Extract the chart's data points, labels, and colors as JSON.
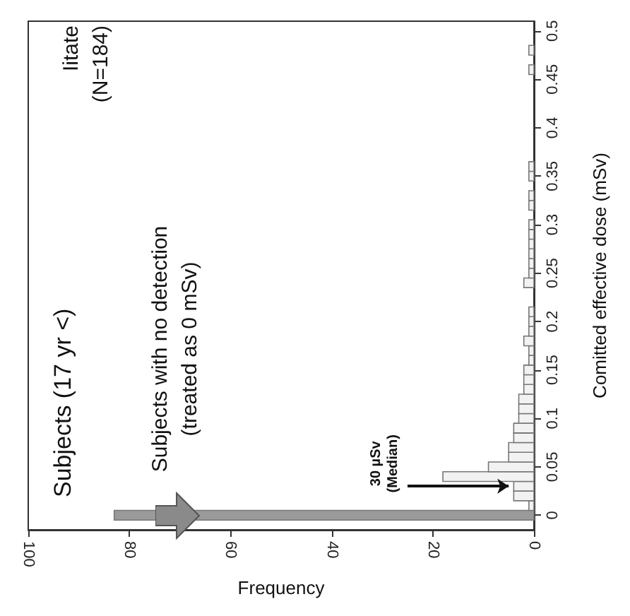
{
  "chart_data": {
    "type": "histogram",
    "orientation": "horizontal",
    "title": "Subjects (17 yr <)",
    "xlabel": "Frequency",
    "ylabel": "Comitted effective dose (mSv)",
    "annotations": [
      "Iitate\n(N=184)",
      "Subjects with no detection\n(treated as 0 mSv)",
      {
        "text": "30 µSv\n(Median)",
        "x": 5,
        "y": 0.03
      }
    ],
    "bins": [
      -0.005,
      0.005,
      0.015,
      0.025,
      0.035,
      0.045,
      0.055,
      0.065,
      0.075,
      0.085,
      0.095,
      0.105,
      0.115,
      0.125,
      0.135,
      0.145,
      0.155,
      0.165,
      0.175,
      0.185,
      0.195,
      0.205,
      0.215,
      0.225,
      0.235,
      0.245,
      0.255,
      0.265,
      0.275,
      0.285,
      0.295,
      0.305,
      0.315,
      0.325,
      0.335,
      0.345,
      0.355,
      0.365,
      0.375,
      0.385,
      0.395,
      0.405,
      0.415,
      0.425,
      0.435,
      0.445,
      0.455,
      0.465,
      0.475,
      0.485,
      0.495
    ],
    "values": [
      83,
      1,
      4,
      4,
      18,
      9,
      5,
      5,
      4,
      4,
      3,
      3,
      3,
      2,
      2,
      2,
      1,
      1,
      2,
      1,
      1,
      1,
      0,
      0,
      2,
      1,
      1,
      1,
      1,
      1,
      1,
      0,
      1,
      1,
      0,
      1,
      1,
      0,
      0,
      0,
      0,
      0,
      0,
      0,
      0,
      0,
      1,
      0,
      1,
      0
    ],
    "colors": [
      "#9a9a9a",
      "#f2f2f2",
      "#f2f2f2",
      "#f2f2f2",
      "#f2f2f2",
      "#f2f2f2",
      "#f2f2f2",
      "#f2f2f2",
      "#f2f2f2",
      "#f2f2f2",
      "#f2f2f2",
      "#f2f2f2",
      "#f2f2f2",
      "#f2f2f2",
      "#f2f2f2",
      "#f2f2f2",
      "#f2f2f2",
      "#f2f2f2",
      "#f2f2f2",
      "#f2f2f2",
      "#f2f2f2",
      "#f2f2f2",
      null,
      null,
      "#f2f2f2",
      "#f2f2f2",
      "#f2f2f2",
      "#f2f2f2",
      "#f2f2f2",
      "#f2f2f2",
      "#f2f2f2",
      null,
      "#f2f2f2",
      "#f2f2f2",
      null,
      "#f2f2f2",
      "#f2f2f2",
      null,
      null,
      null,
      null,
      null,
      null,
      null,
      null,
      null,
      "#f2f2f2",
      null,
      "#f2f2f2",
      null
    ],
    "xlim": [
      100,
      0
    ],
    "xticks": [
      100,
      80,
      60,
      40,
      20,
      0
    ],
    "ylim": [
      -0.015,
      0.51
    ],
    "yticks": [
      0,
      0.05,
      0.1,
      0.15,
      0.2,
      0.25,
      0.3,
      0.35,
      0.4,
      0.45,
      0.5
    ]
  }
}
